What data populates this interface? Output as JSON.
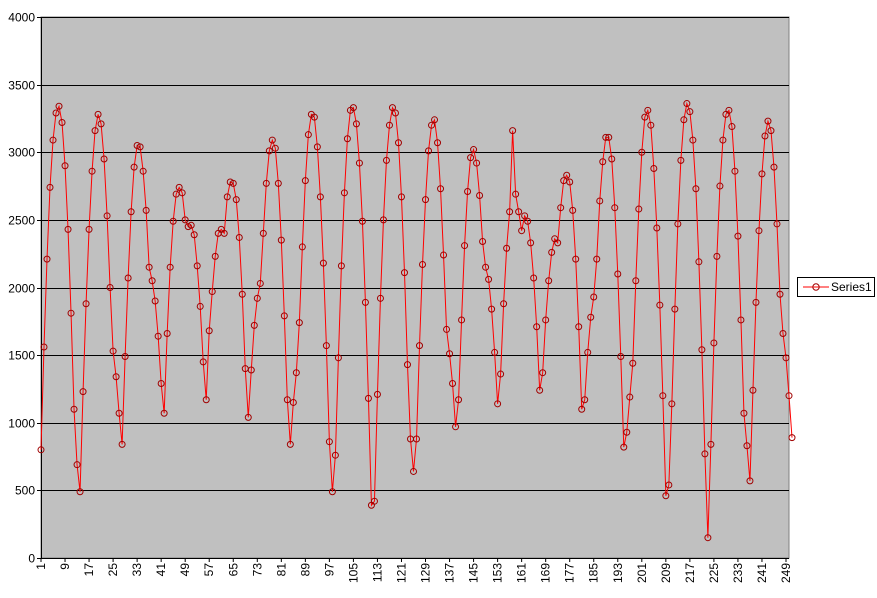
{
  "chart_data": {
    "type": "line",
    "title": "",
    "xlabel": "",
    "ylabel": "",
    "ylim": [
      0,
      4000
    ],
    "yticks": [
      0,
      500,
      1000,
      1500,
      2000,
      2500,
      3000,
      3500,
      4000
    ],
    "xlim": [
      1,
      250
    ],
    "xticks": [
      1,
      9,
      17,
      25,
      33,
      41,
      49,
      57,
      65,
      73,
      81,
      89,
      97,
      105,
      113,
      121,
      129,
      137,
      145,
      153,
      161,
      169,
      177,
      185,
      193,
      201,
      209,
      217,
      225,
      233,
      241,
      249
    ],
    "grid": "horizontal",
    "plot_background": "#c0c0c0",
    "series_color": "#ff0000",
    "legend_position": "right",
    "series": [
      {
        "name": "Series1",
        "values": [
          800,
          1560,
          2210,
          2740,
          3090,
          3290,
          3340,
          3220,
          2900,
          2430,
          1810,
          1100,
          690,
          490,
          1230,
          1880,
          2430,
          2860,
          3160,
          3280,
          3210,
          2950,
          2530,
          2000,
          1530,
          1340,
          1070,
          840,
          1490,
          2070,
          2560,
          2890,
          3050,
          3040,
          2860,
          2570,
          2150,
          2050,
          1900,
          1640,
          1290,
          1070,
          1660,
          2150,
          2490,
          2690,
          2740,
          2700,
          2500,
          2450,
          2460,
          2390,
          2160,
          1860,
          1450,
          1170,
          1680,
          1970,
          2230,
          2400,
          2430,
          2400,
          2670,
          2780,
          2770,
          2650,
          2370,
          1950,
          1400,
          1040,
          1390,
          1720,
          1920,
          2030,
          2400,
          2770,
          3010,
          3090,
          3030,
          2770,
          2350,
          1790,
          1170,
          840,
          1150,
          1370,
          1740,
          2300,
          2790,
          3130,
          3280,
          3260,
          3040,
          2670,
          2180,
          1570,
          860,
          490,
          760,
          1480,
          2160,
          2700,
          3100,
          3310,
          3330,
          3210,
          2920,
          2490,
          1890,
          1180,
          390,
          420,
          1210,
          1920,
          2500,
          2940,
          3200,
          3330,
          3290,
          3070,
          2670,
          2110,
          1430,
          880,
          640,
          880,
          1570,
          2170,
          2650,
          3010,
          3200,
          3240,
          3070,
          2730,
          2240,
          1690,
          1510,
          1290,
          970,
          1170,
          1760,
          2310,
          2710,
          2960,
          3020,
          2920,
          2680,
          2340,
          2150,
          2060,
          1840,
          1520,
          1140,
          1360,
          1880,
          2290,
          2560,
          3160,
          2690,
          2560,
          2420,
          2530,
          2490,
          2330,
          2070,
          1710,
          1240,
          1370,
          1760,
          2050,
          2260,
          2360,
          2330,
          2590,
          2790,
          2830,
          2780,
          2570,
          2210,
          1710,
          1100,
          1170,
          1520,
          1780,
          1930,
          2210,
          2640,
          2930,
          3110,
          3110,
          2950,
          2590,
          2100,
          1490,
          820,
          930,
          1190,
          1440,
          2050,
          2580,
          3000,
          3260,
          3310,
          3200,
          2880,
          2440,
          1870,
          1200,
          460,
          540,
          1140,
          1840,
          2470,
          2940,
          3240,
          3360,
          3300,
          3090,
          2730,
          2190,
          1540,
          770,
          150,
          840,
          1590,
          2230,
          2750,
          3090,
          3280,
          3310,
          3190,
          2860,
          2380,
          1760,
          1070,
          830,
          570,
          1240,
          1890,
          2420,
          2840,
          3120,
          3230,
          3160,
          2890,
          2470,
          1950,
          1660,
          1480,
          1200,
          890
        ]
      }
    ]
  }
}
